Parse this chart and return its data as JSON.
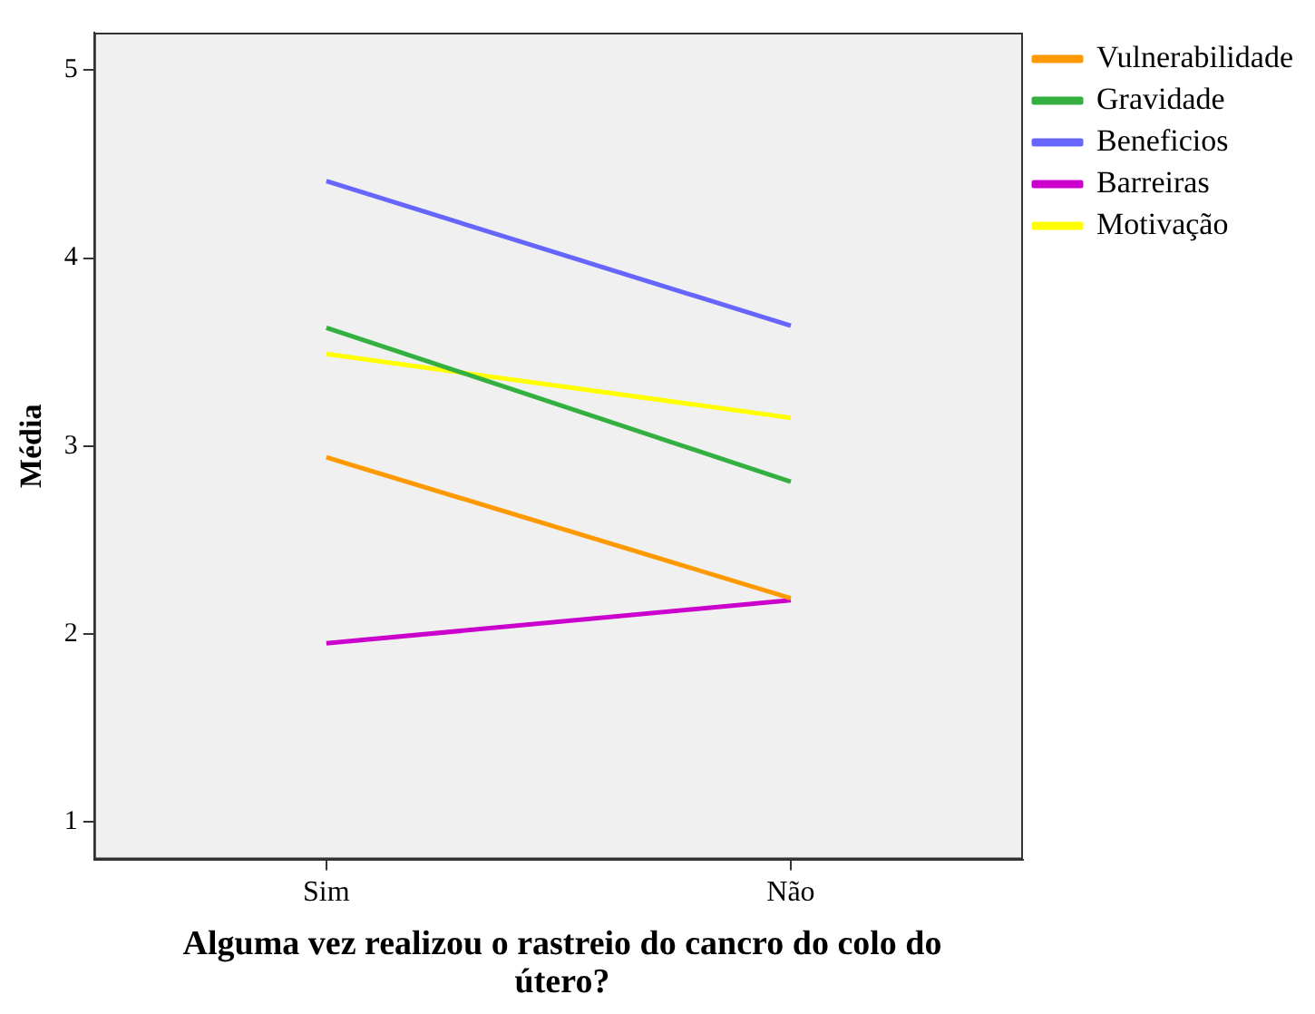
{
  "chart_data": {
    "type": "line",
    "xlabel": "Alguma vez realizou o rastreio do cancro do colo do útero?",
    "ylabel": "Média",
    "categories": [
      "Sim",
      "Não"
    ],
    "series": [
      {
        "name": "Vulnerabilidade",
        "color": "#ff9900",
        "values": [
          2.94,
          2.19
        ]
      },
      {
        "name": "Gravidade",
        "color": "#33b040",
        "values": [
          3.63,
          2.81
        ]
      },
      {
        "name": "Beneficios",
        "color": "#6666ff",
        "values": [
          4.41,
          3.64
        ]
      },
      {
        "name": "Barreiras",
        "color": "#cc00cc",
        "values": [
          1.95,
          2.18
        ]
      },
      {
        "name": "Motivação",
        "color": "#ffff00",
        "values": [
          3.49,
          3.15
        ]
      }
    ],
    "ylim": [
      0.8,
      5.2
    ],
    "yticks": [
      1,
      2,
      3,
      4,
      5
    ],
    "grid": false,
    "legend": "top right",
    "marker": "none",
    "line_style": "solid"
  }
}
